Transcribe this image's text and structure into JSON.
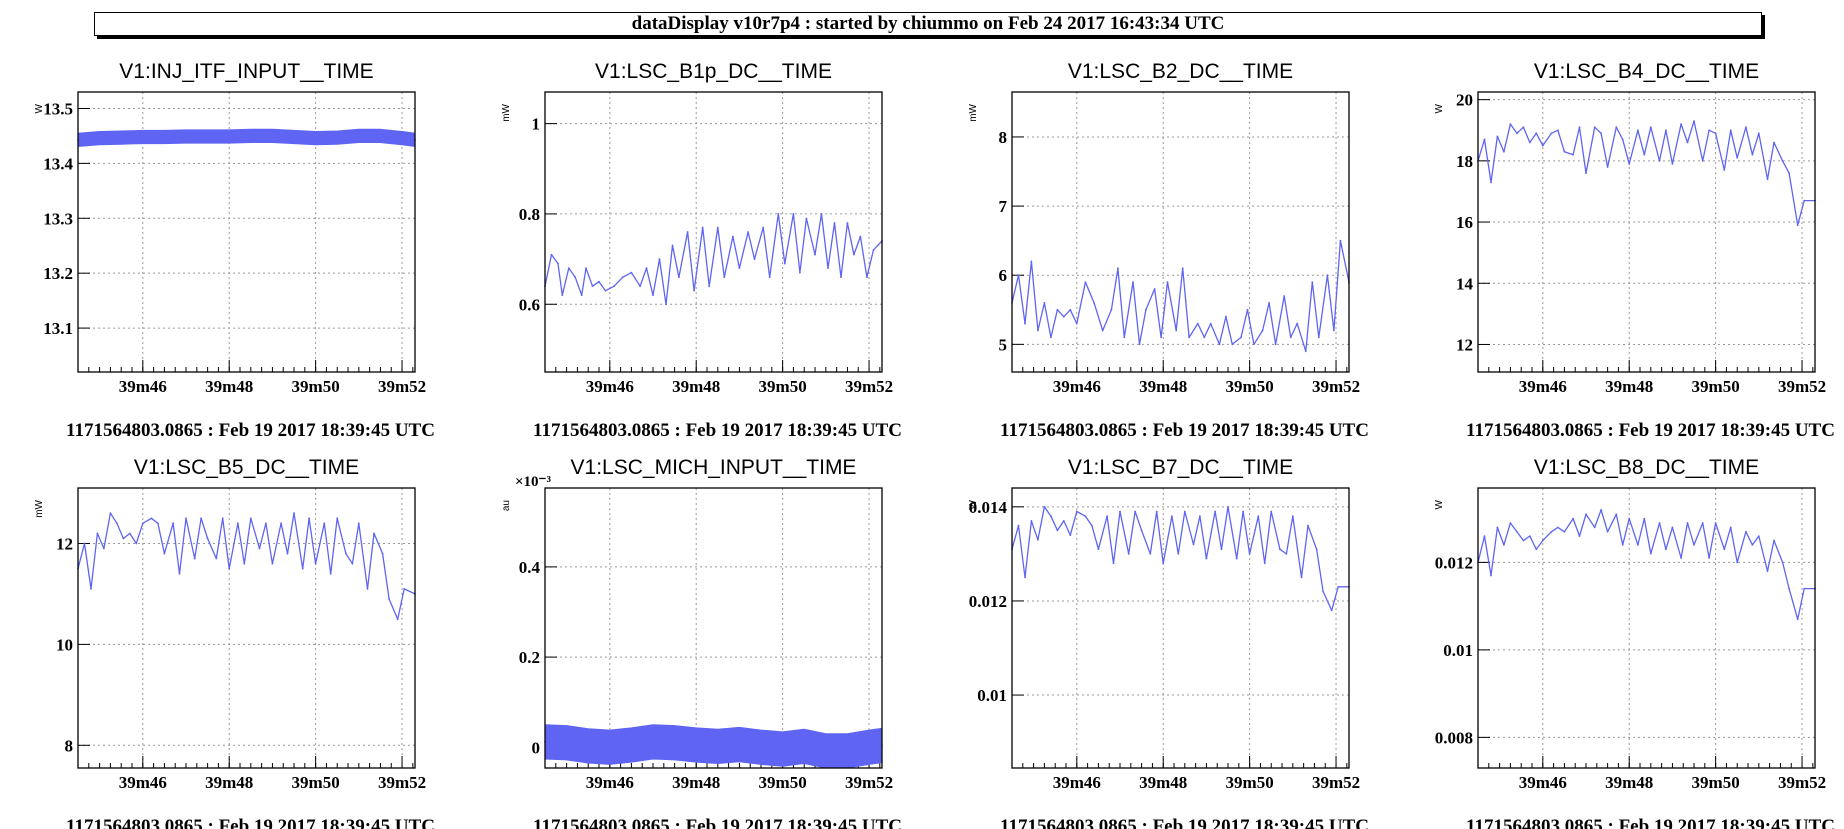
{
  "window_title": "dataDisplay v10r7p4 : started by chiummo on Feb 24 2017 16:43:34 UTC",
  "footer": "1171564803.0865 : Feb 19 2017 18:39:45 UTC",
  "colors": {
    "trace": "#5f65f2",
    "grid": "#9a9a9a",
    "axis": "#000000"
  },
  "x_tick_labels": [
    "39m46",
    "39m48",
    "39m50",
    "39m52"
  ],
  "chart_data": [
    {
      "type": "line",
      "title": "V1:INJ_ITF_INPUT__TIME",
      "ylabel": "W",
      "xlim": [
        104.5,
        112.3
      ],
      "ylim": [
        13.02,
        13.53
      ],
      "band": 0.012,
      "yticks": [
        {
          "v": 13.1,
          "label": "13.1"
        },
        {
          "v": 13.2,
          "label": "13.2"
        },
        {
          "v": 13.3,
          "label": "13.3"
        },
        {
          "v": 13.4,
          "label": "13.4"
        },
        {
          "v": 13.5,
          "label": "13.5"
        }
      ],
      "y_exponent": "",
      "series": [
        {
          "x": [
            104.5,
            105,
            105.5,
            106,
            106.5,
            107,
            107.5,
            108,
            108.5,
            109,
            109.5,
            110,
            110.5,
            111,
            111.5,
            112,
            112.3
          ],
          "y": [
            13.443,
            13.446,
            13.447,
            13.448,
            13.448,
            13.449,
            13.449,
            13.449,
            13.45,
            13.45,
            13.448,
            13.446,
            13.447,
            13.45,
            13.45,
            13.446,
            13.443
          ]
        }
      ]
    },
    {
      "type": "line",
      "title": "V1:LSC_B1p_DC__TIME",
      "ylabel": "mW",
      "xlim": [
        104.5,
        112.3
      ],
      "ylim": [
        0.45,
        1.07
      ],
      "band": 0,
      "yticks": [
        {
          "v": 0.6,
          "label": "0.6"
        },
        {
          "v": 0.8,
          "label": "0.8"
        },
        {
          "v": 1.0,
          "label": "1"
        }
      ],
      "y_exponent": "",
      "series": [
        {
          "x": [
            104.5,
            104.65,
            104.8,
            104.9,
            105.05,
            105.2,
            105.35,
            105.45,
            105.6,
            105.75,
            105.9,
            106.1,
            106.3,
            106.5,
            106.7,
            106.85,
            107,
            107.15,
            107.3,
            107.45,
            107.6,
            107.8,
            107.95,
            108.15,
            108.3,
            108.5,
            108.65,
            108.85,
            109,
            109.2,
            109.35,
            109.55,
            109.7,
            109.9,
            110.05,
            110.25,
            110.4,
            110.55,
            110.75,
            110.9,
            111.05,
            111.2,
            111.35,
            111.5,
            111.65,
            111.8,
            111.95,
            112.1,
            112.3
          ],
          "y": [
            0.64,
            0.71,
            0.69,
            0.62,
            0.68,
            0.66,
            0.62,
            0.68,
            0.64,
            0.65,
            0.63,
            0.64,
            0.66,
            0.67,
            0.64,
            0.68,
            0.62,
            0.7,
            0.6,
            0.73,
            0.66,
            0.76,
            0.63,
            0.77,
            0.64,
            0.77,
            0.66,
            0.75,
            0.68,
            0.76,
            0.7,
            0.77,
            0.66,
            0.8,
            0.69,
            0.8,
            0.67,
            0.79,
            0.71,
            0.8,
            0.68,
            0.78,
            0.66,
            0.78,
            0.71,
            0.75,
            0.66,
            0.72,
            0.74
          ]
        }
      ]
    },
    {
      "type": "line",
      "title": "V1:LSC_B2_DC__TIME",
      "ylabel": "mW",
      "xlim": [
        104.5,
        112.3
      ],
      "ylim": [
        4.6,
        8.65
      ],
      "band": 0,
      "yticks": [
        {
          "v": 5,
          "label": "5"
        },
        {
          "v": 6,
          "label": "6"
        },
        {
          "v": 7,
          "label": "7"
        },
        {
          "v": 8,
          "label": "8"
        }
      ],
      "y_exponent": "",
      "series": [
        {
          "x": [
            104.5,
            104.65,
            104.8,
            104.95,
            105.1,
            105.25,
            105.4,
            105.55,
            105.7,
            105.85,
            106,
            106.2,
            106.4,
            106.6,
            106.8,
            106.95,
            107.1,
            107.3,
            107.45,
            107.6,
            107.8,
            107.95,
            108.1,
            108.3,
            108.45,
            108.6,
            108.8,
            108.95,
            109.1,
            109.3,
            109.45,
            109.6,
            109.8,
            109.95,
            110.1,
            110.3,
            110.45,
            110.6,
            110.8,
            110.95,
            111.1,
            111.3,
            111.45,
            111.6,
            111.8,
            111.95,
            112.1,
            112.3
          ],
          "y": [
            5.6,
            6.0,
            5.3,
            6.2,
            5.2,
            5.6,
            5.1,
            5.5,
            5.4,
            5.5,
            5.3,
            5.9,
            5.6,
            5.2,
            5.5,
            6.1,
            5.1,
            5.9,
            5.0,
            5.5,
            5.8,
            5.1,
            5.9,
            5.2,
            6.1,
            5.1,
            5.3,
            5.1,
            5.3,
            5.0,
            5.4,
            5.0,
            5.1,
            5.5,
            5.0,
            5.2,
            5.6,
            5.0,
            5.7,
            5.1,
            5.3,
            4.9,
            5.9,
            5.1,
            6.0,
            5.2,
            6.5,
            5.9
          ]
        }
      ]
    },
    {
      "type": "line",
      "title": "V1:LSC_B4_DC__TIME",
      "ylabel": "W",
      "xlim": [
        104.5,
        112.3
      ],
      "ylim": [
        11.1,
        20.25
      ],
      "band": 0,
      "yticks": [
        {
          "v": 12,
          "label": "12"
        },
        {
          "v": 14,
          "label": "14"
        },
        {
          "v": 16,
          "label": "16"
        },
        {
          "v": 18,
          "label": "18"
        },
        {
          "v": 20,
          "label": "20"
        }
      ],
      "y_exponent": "",
      "series": [
        {
          "x": [
            104.5,
            104.65,
            104.8,
            104.95,
            105.1,
            105.25,
            105.4,
            105.55,
            105.7,
            105.85,
            106,
            106.2,
            106.35,
            106.5,
            106.7,
            106.85,
            107,
            107.2,
            107.35,
            107.5,
            107.7,
            107.85,
            108,
            108.2,
            108.35,
            108.5,
            108.7,
            108.85,
            109,
            109.2,
            109.35,
            109.5,
            109.7,
            109.85,
            110,
            110.2,
            110.35,
            110.5,
            110.7,
            110.85,
            111,
            111.2,
            111.35,
            111.55,
            111.7,
            111.9,
            112.05,
            112.3
          ],
          "y": [
            18.0,
            18.7,
            17.3,
            18.8,
            18.3,
            19.2,
            18.9,
            19.1,
            18.6,
            18.9,
            18.5,
            18.9,
            19.0,
            18.3,
            18.2,
            19.1,
            17.6,
            19.1,
            18.9,
            17.8,
            19.1,
            18.7,
            17.9,
            19.0,
            18.2,
            19.1,
            18.0,
            19.0,
            17.9,
            19.2,
            18.6,
            19.3,
            18.0,
            19.0,
            18.9,
            17.7,
            19.0,
            18.1,
            19.1,
            18.2,
            18.9,
            17.4,
            18.6,
            18.0,
            17.6,
            15.9,
            16.7,
            16.7
          ]
        }
      ]
    },
    {
      "type": "line",
      "title": "V1:LSC_B5_DC__TIME",
      "ylabel": "mW",
      "xlim": [
        104.5,
        112.3
      ],
      "ylim": [
        7.55,
        13.1
      ],
      "band": 0,
      "yticks": [
        {
          "v": 8,
          "label": "8"
        },
        {
          "v": 10,
          "label": "10"
        },
        {
          "v": 12,
          "label": "12"
        }
      ],
      "y_exponent": "",
      "series": [
        {
          "x": [
            104.5,
            104.65,
            104.8,
            104.95,
            105.1,
            105.25,
            105.4,
            105.55,
            105.7,
            105.85,
            106,
            106.2,
            106.35,
            106.5,
            106.7,
            106.85,
            107,
            107.2,
            107.35,
            107.5,
            107.7,
            107.85,
            108,
            108.2,
            108.35,
            108.5,
            108.7,
            108.85,
            109,
            109.2,
            109.35,
            109.5,
            109.7,
            109.85,
            110,
            110.2,
            110.35,
            110.5,
            110.7,
            110.85,
            111,
            111.2,
            111.35,
            111.55,
            111.7,
            111.9,
            112.05,
            112.3
          ],
          "y": [
            11.5,
            12.0,
            11.1,
            12.2,
            11.9,
            12.6,
            12.4,
            12.1,
            12.2,
            12.0,
            12.4,
            12.5,
            12.4,
            11.8,
            12.4,
            11.4,
            12.5,
            11.7,
            12.5,
            12.1,
            11.7,
            12.5,
            11.5,
            12.4,
            11.6,
            12.5,
            11.9,
            12.4,
            11.6,
            12.4,
            11.8,
            12.6,
            11.5,
            12.5,
            11.6,
            12.4,
            11.4,
            12.5,
            11.8,
            11.6,
            12.4,
            11.1,
            12.2,
            11.8,
            10.9,
            10.5,
            11.1,
            11.0
          ]
        }
      ]
    },
    {
      "type": "line",
      "title": "V1:LSC_MICH_INPUT__TIME",
      "ylabel": "au",
      "xlim": [
        104.5,
        112.3
      ],
      "ylim": [
        -0.046,
        0.575
      ],
      "band": 0.038,
      "yticks": [
        {
          "v": 0,
          "label": "0"
        },
        {
          "v": 0.2,
          "label": "0.2"
        },
        {
          "v": 0.4,
          "label": "0.4"
        }
      ],
      "y_exponent": "×10⁻³",
      "series": [
        {
          "x": [
            104.5,
            105,
            105.5,
            106,
            106.5,
            107,
            107.5,
            108,
            108.5,
            109,
            109.5,
            110,
            110.5,
            111,
            111.5,
            112,
            112.3
          ],
          "y": [
            0.012,
            0.01,
            0.003,
            0.0,
            0.005,
            0.012,
            0.01,
            0.005,
            0.002,
            0.006,
            0.0,
            -0.004,
            0.002,
            -0.008,
            -0.008,
            0.0,
            0.004
          ]
        }
      ]
    },
    {
      "type": "line",
      "title": "V1:LSC_B7_DC__TIME",
      "ylabel": "W",
      "xlim": [
        104.5,
        112.3
      ],
      "ylim": [
        0.00845,
        0.0144
      ],
      "band": 0,
      "yticks": [
        {
          "v": 0.01,
          "label": "0.01"
        },
        {
          "v": 0.012,
          "label": "0.012"
        },
        {
          "v": 0.014,
          "label": "0.014"
        }
      ],
      "y_exponent": "",
      "series": [
        {
          "x": [
            104.5,
            104.65,
            104.8,
            104.95,
            105.1,
            105.25,
            105.4,
            105.55,
            105.7,
            105.85,
            106,
            106.2,
            106.35,
            106.5,
            106.7,
            106.85,
            107,
            107.2,
            107.35,
            107.5,
            107.7,
            107.85,
            108,
            108.2,
            108.35,
            108.5,
            108.7,
            108.85,
            109,
            109.2,
            109.35,
            109.5,
            109.7,
            109.85,
            110,
            110.2,
            110.35,
            110.5,
            110.7,
            110.85,
            111,
            111.2,
            111.35,
            111.55,
            111.7,
            111.9,
            112.05,
            112.3
          ],
          "y": [
            0.0131,
            0.0136,
            0.0125,
            0.0137,
            0.0133,
            0.014,
            0.0138,
            0.0135,
            0.0137,
            0.0134,
            0.0139,
            0.0138,
            0.0136,
            0.0131,
            0.0138,
            0.0128,
            0.0139,
            0.013,
            0.0139,
            0.0135,
            0.013,
            0.0139,
            0.0128,
            0.0138,
            0.013,
            0.0139,
            0.0132,
            0.0138,
            0.0129,
            0.0139,
            0.0131,
            0.014,
            0.0129,
            0.0139,
            0.013,
            0.0138,
            0.0128,
            0.0139,
            0.0131,
            0.013,
            0.0138,
            0.0125,
            0.0136,
            0.0131,
            0.0122,
            0.0118,
            0.0123,
            0.0123
          ]
        }
      ]
    },
    {
      "type": "line",
      "title": "V1:LSC_B8_DC__TIME",
      "ylabel": "W",
      "xlim": [
        104.5,
        112.3
      ],
      "ylim": [
        0.0073,
        0.0137
      ],
      "band": 0,
      "yticks": [
        {
          "v": 0.008,
          "label": "0.008"
        },
        {
          "v": 0.01,
          "label": "0.01"
        },
        {
          "v": 0.012,
          "label": "0.012"
        }
      ],
      "y_exponent": "",
      "series": [
        {
          "x": [
            104.5,
            104.65,
            104.8,
            104.95,
            105.1,
            105.25,
            105.4,
            105.55,
            105.7,
            105.85,
            106,
            106.2,
            106.35,
            106.5,
            106.7,
            106.85,
            107,
            107.2,
            107.35,
            107.5,
            107.7,
            107.85,
            108,
            108.2,
            108.35,
            108.5,
            108.7,
            108.85,
            109,
            109.2,
            109.35,
            109.5,
            109.7,
            109.85,
            110,
            110.2,
            110.35,
            110.5,
            110.7,
            110.85,
            111,
            111.2,
            111.35,
            111.55,
            111.7,
            111.9,
            112.05,
            112.3
          ],
          "y": [
            0.012,
            0.0126,
            0.0117,
            0.0128,
            0.0124,
            0.0129,
            0.0127,
            0.0125,
            0.0126,
            0.0123,
            0.0125,
            0.0127,
            0.0128,
            0.0127,
            0.013,
            0.0126,
            0.0131,
            0.0128,
            0.0132,
            0.0127,
            0.0131,
            0.0124,
            0.013,
            0.0124,
            0.013,
            0.0122,
            0.0129,
            0.0123,
            0.0128,
            0.0121,
            0.0129,
            0.0124,
            0.0129,
            0.0121,
            0.0129,
            0.0123,
            0.0128,
            0.012,
            0.0127,
            0.0124,
            0.0126,
            0.0118,
            0.0125,
            0.012,
            0.0114,
            0.0107,
            0.0114,
            0.0114
          ]
        }
      ]
    }
  ]
}
